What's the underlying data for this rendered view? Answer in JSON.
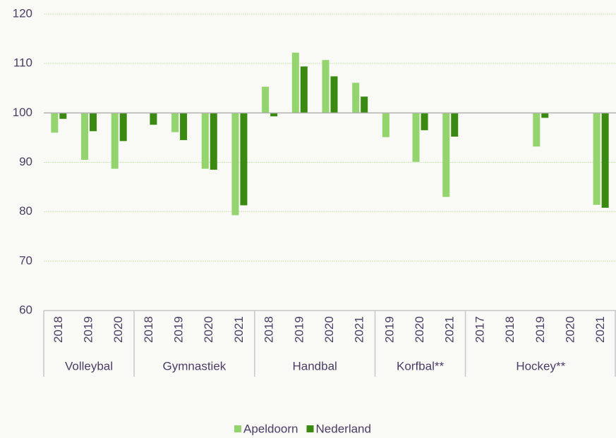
{
  "chart_data": {
    "type": "bar",
    "groups": [
      {
        "name": "Volleybal",
        "categories": [
          "2018",
          "2019",
          "2020"
        ]
      },
      {
        "name": "Gymnastiek",
        "categories": [
          "2018",
          "2019",
          "2020",
          "2021"
        ]
      },
      {
        "name": "Handbal",
        "categories": [
          "2018",
          "2019",
          "2020",
          "2021"
        ]
      },
      {
        "name": "Korfbal**",
        "categories": [
          "2019",
          "2020",
          "2021"
        ]
      },
      {
        "name": "Hockey**",
        "categories": [
          "2017",
          "2018",
          "2019",
          "2020",
          "2021"
        ]
      }
    ],
    "series": [
      {
        "name": "Apeldoorn",
        "color": "#93d46f",
        "values": [
          96,
          90.5,
          88.7,
          null,
          96.1,
          88.7,
          79.3,
          105.3,
          112.2,
          110.7,
          106.1,
          95.1,
          90.1,
          83,
          null,
          null,
          93.2,
          null,
          81.4
        ]
      },
      {
        "name": "Nederland",
        "color": "#3a8a12",
        "values": [
          98.8,
          96.3,
          94.3,
          97.6,
          94.5,
          88.5,
          81.3,
          99.3,
          109.4,
          107.4,
          103.3,
          null,
          96.5,
          95.2,
          null,
          null,
          99,
          null,
          80.8
        ]
      }
    ],
    "baseline": 100,
    "ylim": [
      60,
      120
    ],
    "yticks": [
      60,
      70,
      80,
      90,
      100,
      110,
      120
    ],
    "grid": true,
    "legend": "bottom"
  }
}
